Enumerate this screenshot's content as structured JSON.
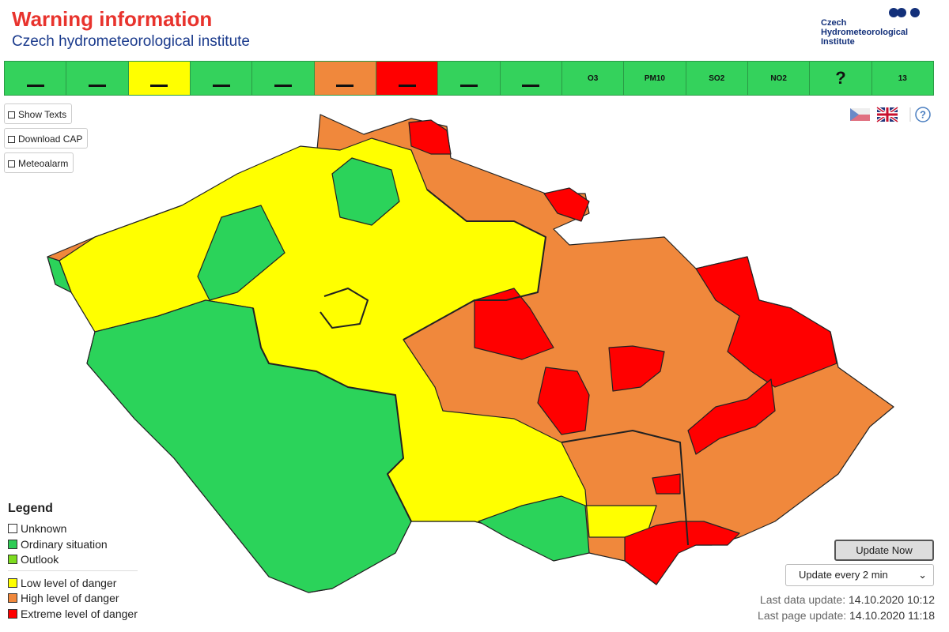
{
  "header": {
    "title": "Warning information",
    "subtitle": "Czech hydrometeorological institute",
    "logo": [
      "Czech",
      "Hydrometeorological",
      "Institute"
    ]
  },
  "toolbar": [
    {
      "color": "#34d25c"
    },
    {
      "color": "#34d25c"
    },
    {
      "color": "#ffff00"
    },
    {
      "color": "#34d25c"
    },
    {
      "color": "#34d25c"
    },
    {
      "color": "#f0883c"
    },
    {
      "color": "#ff0000"
    },
    {
      "color": "#34d25c"
    },
    {
      "color": "#34d25c"
    },
    {
      "color": "#34d25c",
      "label": "O3"
    },
    {
      "color": "#34d25c",
      "label": "PM10"
    },
    {
      "color": "#34d25c",
      "label": "SO2"
    },
    {
      "color": "#34d25c",
      "label": "NO2"
    },
    {
      "color": "#34d25c",
      "label": "?"
    },
    {
      "color": "#34d25c",
      "label": "13"
    }
  ],
  "buttons": [
    "Show Texts",
    "Download CAP",
    "Meteoalarm"
  ],
  "help": "?",
  "legend": {
    "title": "Legend",
    "items": [
      {
        "label": "Unknown",
        "color": "#ffffff"
      },
      {
        "label": "Ordinary situation",
        "color": "#2ecc55"
      },
      {
        "label": "Outlook",
        "color": "#7ddc1f"
      },
      {
        "label": "Low level of danger",
        "color": "#ffff00"
      },
      {
        "label": "High level of danger",
        "color": "#f0883c"
      },
      {
        "label": "Extreme level of danger",
        "color": "#ff0000"
      }
    ]
  },
  "update_button": "Update Now",
  "update_select": "Update every 2 min",
  "last_data_update": {
    "label": "Last data update:",
    "value": "14.10.2020 10:12"
  },
  "last_page_update": {
    "label": "Last page update:",
    "value": "14.10.2020 11:18"
  }
}
